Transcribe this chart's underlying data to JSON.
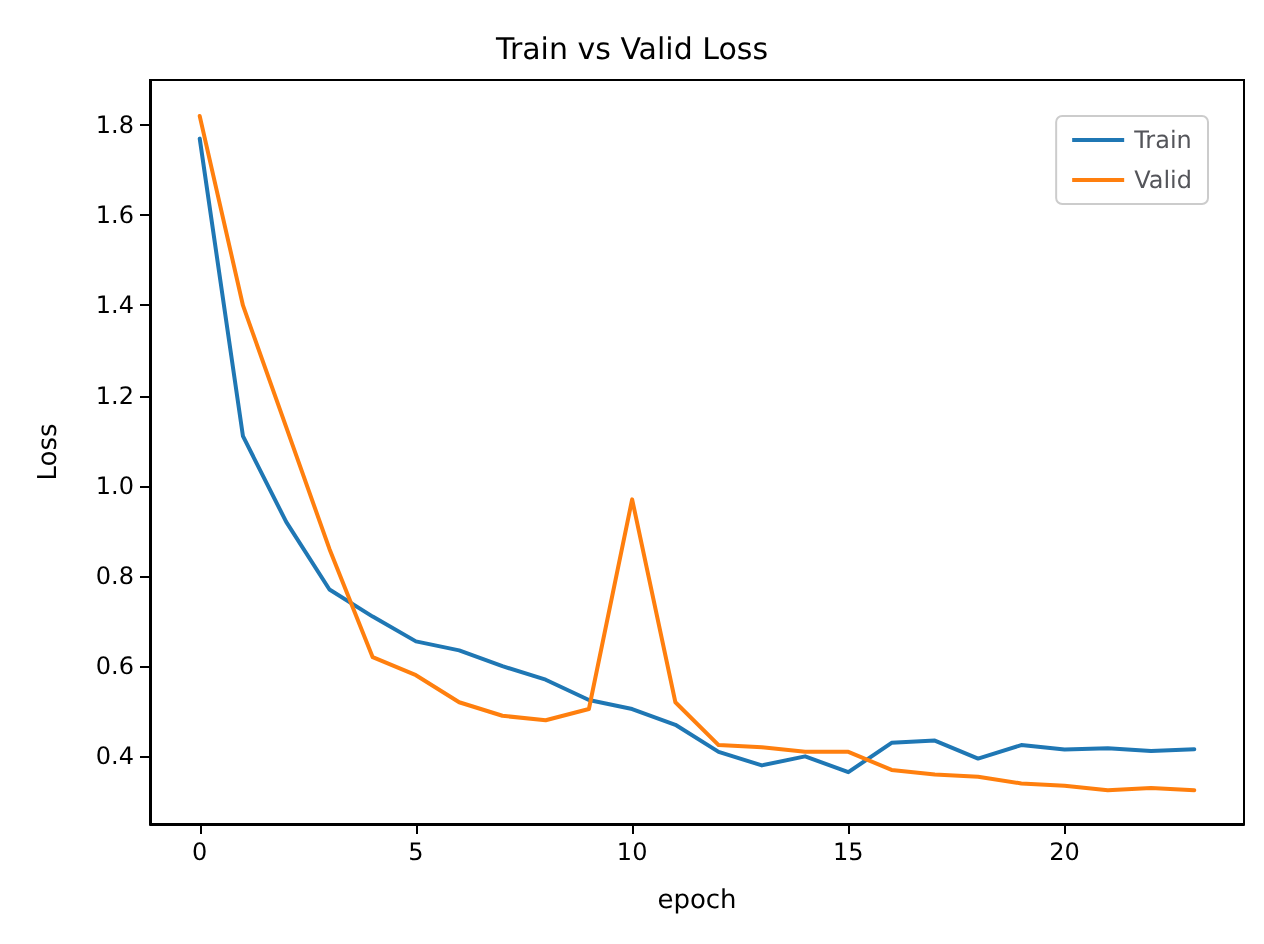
{
  "chart_data": {
    "type": "line",
    "title": "Train vs Valid Loss",
    "xlabel": "epoch",
    "ylabel": "Loss",
    "x": [
      0,
      1,
      2,
      3,
      4,
      5,
      6,
      7,
      8,
      9,
      10,
      11,
      12,
      13,
      14,
      15,
      16,
      17,
      18,
      19,
      20,
      21,
      22,
      23
    ],
    "series": [
      {
        "name": "Train",
        "color": "#1f77b4",
        "values": [
          1.77,
          1.11,
          0.92,
          0.77,
          0.71,
          0.655,
          0.635,
          0.6,
          0.57,
          0.525,
          0.505,
          0.47,
          0.41,
          0.38,
          0.4,
          0.365,
          0.43,
          0.435,
          0.395,
          0.425,
          0.415,
          0.418,
          0.412,
          0.416
        ]
      },
      {
        "name": "Valid",
        "color": "#ff7f0e",
        "values": [
          1.82,
          1.4,
          1.13,
          0.86,
          0.62,
          0.58,
          0.52,
          0.49,
          0.48,
          0.505,
          0.97,
          0.52,
          0.425,
          0.42,
          0.41,
          0.41,
          0.37,
          0.36,
          0.355,
          0.34,
          0.335,
          0.325,
          0.33,
          0.325
        ]
      }
    ],
    "xlim": [
      -1.15,
      24.15
    ],
    "xticks": [
      0,
      5,
      10,
      15,
      20
    ],
    "ylim": [
      0.25,
      1.9
    ],
    "yticks": [
      0.4,
      0.6,
      0.8,
      {
        "value": 1,
        "label": "1.0"
      },
      1.2,
      1.4,
      1.6,
      1.8
    ],
    "grid": false,
    "legend": "top right",
    "marker": "none",
    "line_style": "solid"
  }
}
